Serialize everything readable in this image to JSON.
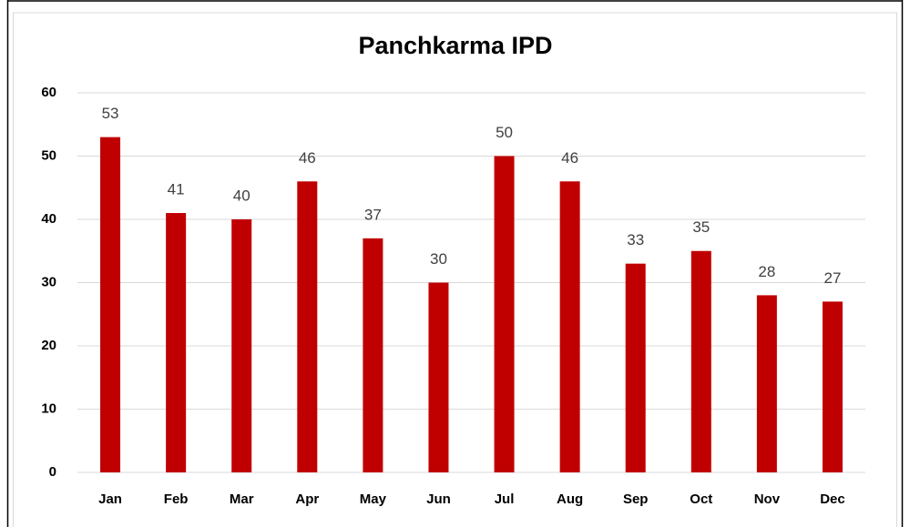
{
  "chart_data": {
    "type": "bar",
    "title": "Panchkarma IPD",
    "categories": [
      "Jan",
      "Feb",
      "Mar",
      "Apr",
      "May",
      "Jun",
      "Jul",
      "Aug",
      "Sep",
      "Oct",
      "Nov",
      "Dec"
    ],
    "values": [
      53,
      41,
      40,
      46,
      37,
      30,
      50,
      46,
      33,
      35,
      28,
      27
    ],
    "color": "#c00000",
    "ylim": [
      0,
      60
    ],
    "yticks": [
      0,
      10,
      20,
      30,
      40,
      50,
      60
    ],
    "grid": true,
    "data_labels": true
  }
}
